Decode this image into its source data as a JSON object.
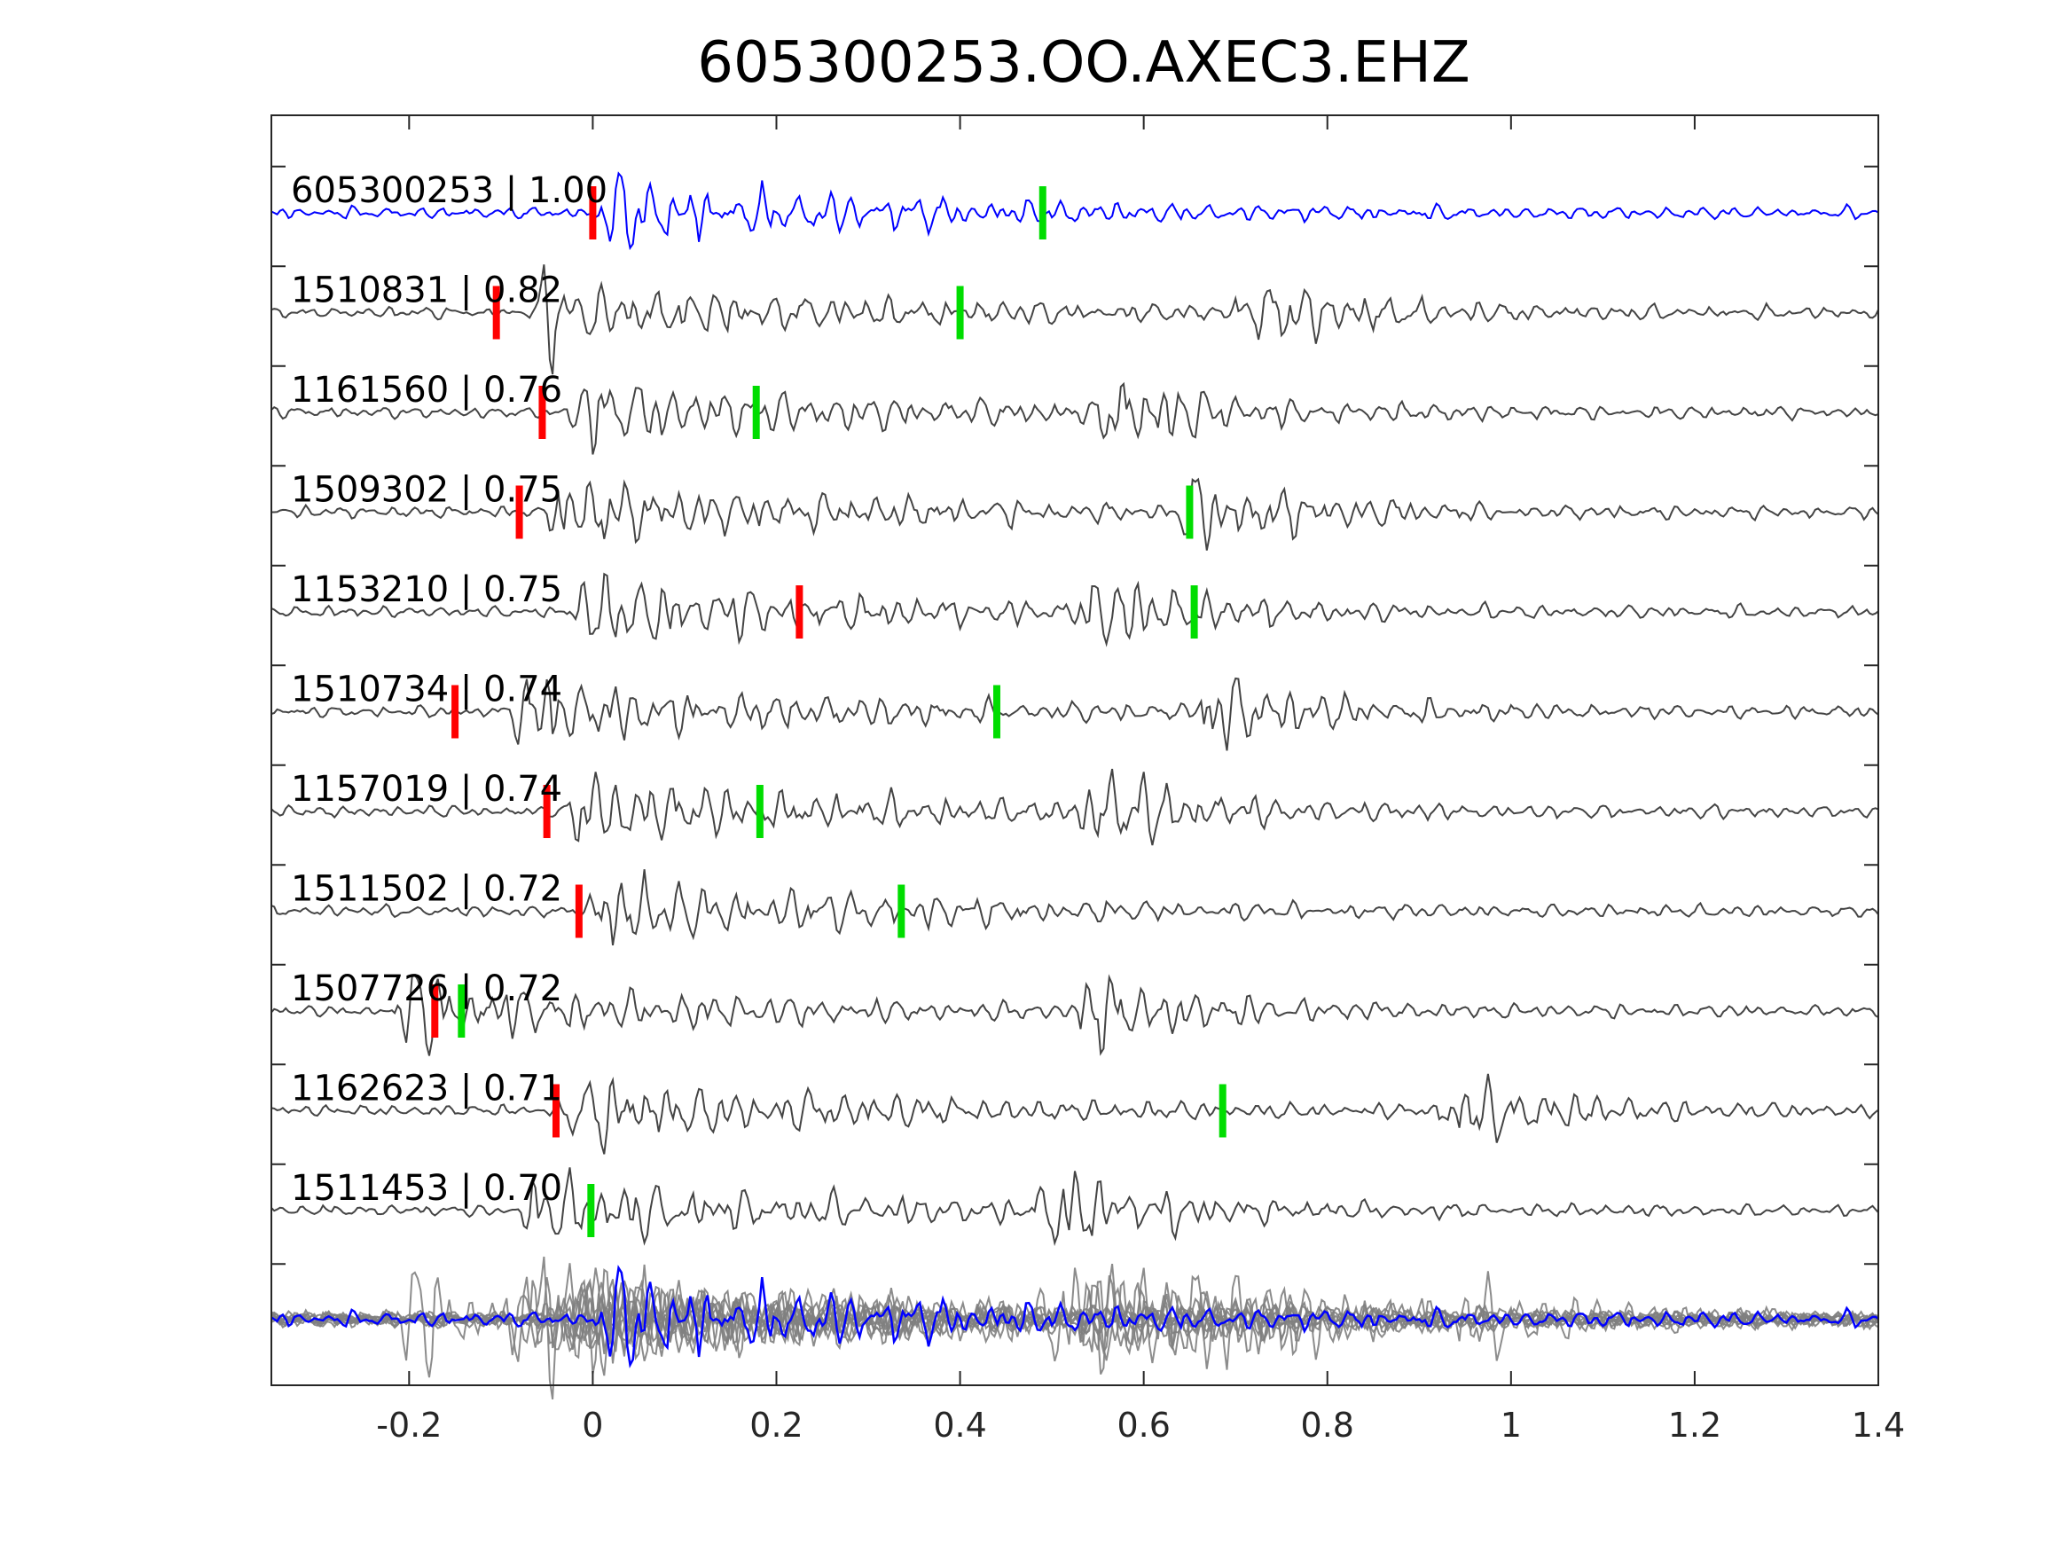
{
  "chart_data": {
    "type": "line",
    "title": "605300253.OO.AXEC3.EHZ",
    "xlabel": "",
    "ylabel": "",
    "xlim": [
      -0.35,
      1.4
    ],
    "xticks": [
      -0.2,
      0,
      0.2,
      0.4,
      0.6,
      0.8,
      1,
      1.2,
      1.4
    ],
    "xtick_labels": [
      "-0.2",
      "0",
      "0.2",
      "0.4",
      "0.6",
      "0.8",
      "1",
      "1.2",
      "1.4"
    ],
    "grid": false,
    "colors": {
      "template": "#0000ff",
      "trace": "#444444",
      "stack": "#808080",
      "p_pick": "#ff0000",
      "s_pick": "#00dd00",
      "axes": "#262626"
    },
    "traces": [
      {
        "id": "605300253",
        "cc": "1.00",
        "label": "605300253 | 1.00",
        "p_pick": 0.0,
        "s_pick": 0.49,
        "template": true,
        "onset": 0.0,
        "late_burst": null
      },
      {
        "id": "1510831",
        "cc": "0.82",
        "label": "1510831 | 0.82",
        "p_pick": -0.105,
        "s_pick": 0.4,
        "template": false,
        "onset": -0.07,
        "late_burst": 0.72
      },
      {
        "id": "1161560",
        "cc": "0.76",
        "label": "1161560 | 0.76",
        "p_pick": -0.055,
        "s_pick": 0.178,
        "template": false,
        "onset": -0.03,
        "late_burst": 0.57
      },
      {
        "id": "1509302",
        "cc": "0.75",
        "label": "1509302 | 0.75",
        "p_pick": -0.08,
        "s_pick": 0.65,
        "template": false,
        "onset": -0.05,
        "late_burst": 0.66
      },
      {
        "id": "1153210",
        "cc": "0.75",
        "label": "1153210 | 0.75",
        "p_pick": 0.225,
        "s_pick": 0.655,
        "template": false,
        "onset": -0.03,
        "late_burst": 0.55
      },
      {
        "id": "1510734",
        "cc": "0.74",
        "label": "1510734 | 0.74",
        "p_pick": -0.15,
        "s_pick": 0.44,
        "template": false,
        "onset": -0.09,
        "late_burst": 0.68
      },
      {
        "id": "1157019",
        "cc": "0.74",
        "label": "1157019 | 0.74",
        "p_pick": -0.05,
        "s_pick": 0.182,
        "template": false,
        "onset": -0.03,
        "late_burst": 0.55
      },
      {
        "id": "1511502",
        "cc": "0.72",
        "label": "1511502 | 0.72",
        "p_pick": -0.015,
        "s_pick": 0.336,
        "template": false,
        "onset": -0.01,
        "late_burst": null
      },
      {
        "id": "1507726",
        "cc": "0.72",
        "label": "1507726 | 0.72",
        "p_pick": -0.172,
        "s_pick": -0.143,
        "template": false,
        "onset": -0.22,
        "late_burst": 0.55
      },
      {
        "id": "1162623",
        "cc": "0.71",
        "label": "1162623 | 0.71",
        "p_pick": -0.04,
        "s_pick": 0.686,
        "template": false,
        "onset": -0.04,
        "late_burst": 0.94
      },
      {
        "id": "1511453",
        "cc": "0.70",
        "label": "1511453 | 0.70",
        "p_pick": null,
        "s_pick": -0.002,
        "template": false,
        "onset": -0.08,
        "late_burst": 0.5
      }
    ],
    "stack": {
      "description_values": "overlay of all traces",
      "legend": ""
    }
  }
}
